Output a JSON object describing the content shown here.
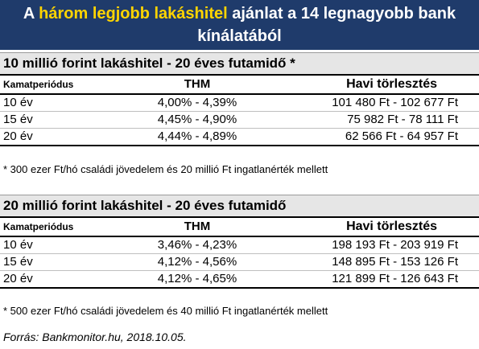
{
  "header": {
    "line1_pre": "A ",
    "line1_highlight": "három legjobb lakáshitel",
    "line1_post": " ajánlat a 14 legnagyobb bank",
    "line2": "kínálatából"
  },
  "colors": {
    "header_bg": "#1f3b6b",
    "highlight": "#ffd400",
    "section_bg": "#e6e6e6"
  },
  "tables": [
    {
      "title": "10 millió forint lakáshitel - 20 éves futamidő *",
      "columns": [
        "Kamatperiódus",
        "THM",
        "Havi törlesztés"
      ],
      "rows": [
        [
          "10 év",
          "4,00% - 4,39%",
          "101 480 Ft - 102 677 Ft"
        ],
        [
          "15 év",
          "4,45% - 4,90%",
          "75 982 Ft - 78 111 Ft"
        ],
        [
          "20 év",
          "4,44% - 4,89%",
          "62 566 Ft - 64 957 Ft"
        ]
      ],
      "note": "* 300 ezer Ft/hó családi jövedelem és 20 millió Ft ingatlanérték mellett"
    },
    {
      "title": "20 millió forint lakáshitel - 20 éves futamidő",
      "columns": [
        "Kamatperiódus",
        "THM",
        "Havi törlesztés"
      ],
      "rows": [
        [
          "10 év",
          "3,46% - 4,23%",
          "198 193 Ft - 203 919 Ft"
        ],
        [
          "15 év",
          "4,12% - 4,56%",
          "148 895 Ft - 153 126 Ft"
        ],
        [
          "20 év",
          "4,12% - 4,65%",
          "121 899 Ft - 126 643 Ft"
        ]
      ],
      "note": "* 500 ezer Ft/hó családi jövedelem és 40 millió Ft ingatlanérték mellett"
    }
  ],
  "source": "Forrás: Bankmonitor.hu, 2018.10.05."
}
